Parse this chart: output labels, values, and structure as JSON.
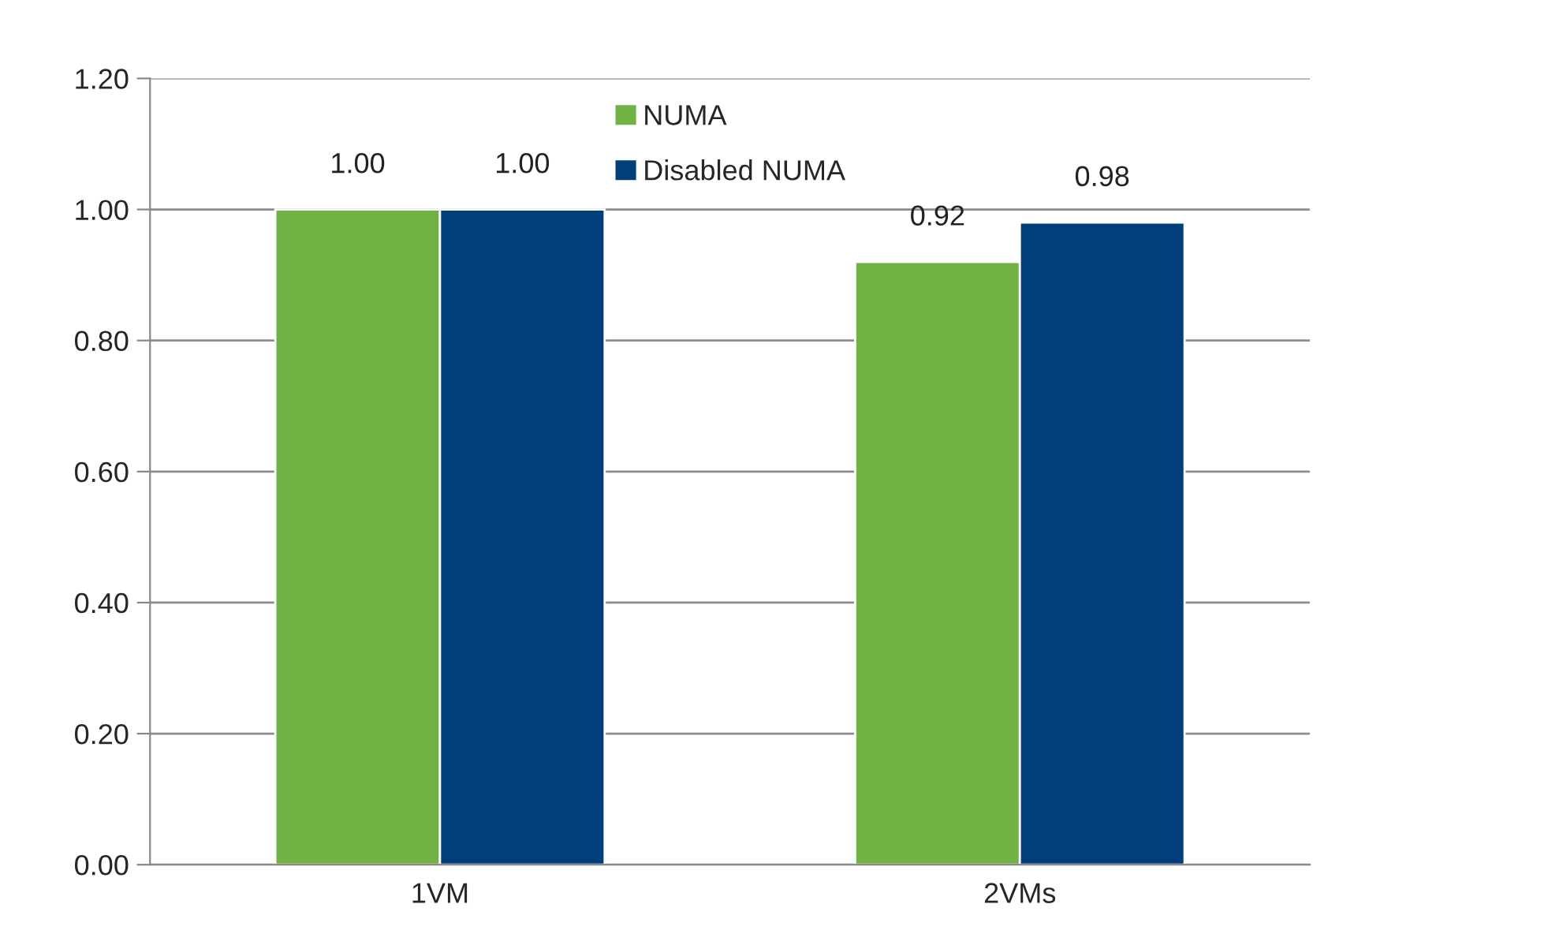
{
  "chart_data": {
    "type": "bar",
    "categories": [
      "1VM",
      "2VMs"
    ],
    "series": [
      {
        "name": "NUMA",
        "color": "#70b244",
        "values": [
          1.0,
          0.92
        ],
        "value_labels": [
          "1.00",
          "0.92"
        ]
      },
      {
        "name": "Disabled NUMA",
        "color": "#003f7a",
        "values": [
          1.0,
          0.98
        ],
        "value_labels": [
          "1.00",
          "0.98"
        ]
      }
    ],
    "ylim": [
      0,
      1.2
    ],
    "yticks": [
      {
        "value": 0,
        "label": "0.00"
      },
      {
        "value": 0.2,
        "label": "0.20"
      },
      {
        "value": 0.4,
        "label": "0.40"
      },
      {
        "value": 0.6,
        "label": "0.60"
      },
      {
        "value": 0.8,
        "label": "0.80"
      },
      {
        "value": 1.0,
        "label": "1.00"
      },
      {
        "value": 1.2,
        "label": "1.20"
      }
    ],
    "grid": "y",
    "legend": "top"
  }
}
